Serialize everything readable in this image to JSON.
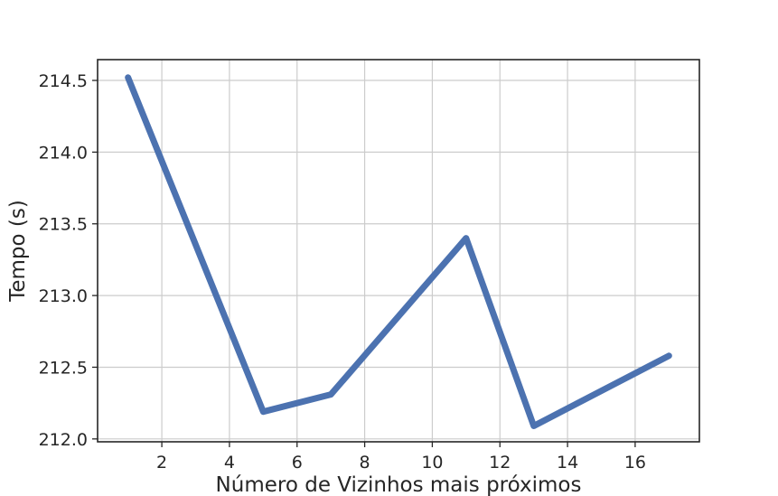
{
  "chart_data": {
    "type": "line",
    "title": "",
    "xlabel": "Número de Vizinhos mais próximos",
    "ylabel": "Tempo (s)",
    "x": [
      1,
      5,
      7,
      11,
      13,
      17
    ],
    "series": [
      {
        "values": [
          214.52,
          212.19,
          212.31,
          213.4,
          212.09,
          212.58
        ]
      }
    ],
    "xlim": [
      0.1,
      17.9
    ],
    "ylim": [
      211.98,
      214.645
    ],
    "xticks": [
      2,
      4,
      6,
      8,
      10,
      12,
      14,
      16
    ],
    "xtick_labels": [
      "2",
      "4",
      "6",
      "8",
      "10",
      "12",
      "14",
      "16"
    ],
    "yticks": [
      212.0,
      212.5,
      213.0,
      213.5,
      214.0,
      214.5
    ],
    "ytick_labels": [
      "212.0",
      "212.5",
      "213.0",
      "213.5",
      "214.0",
      "214.5"
    ],
    "grid": true,
    "line_color": "#4c72b0"
  }
}
